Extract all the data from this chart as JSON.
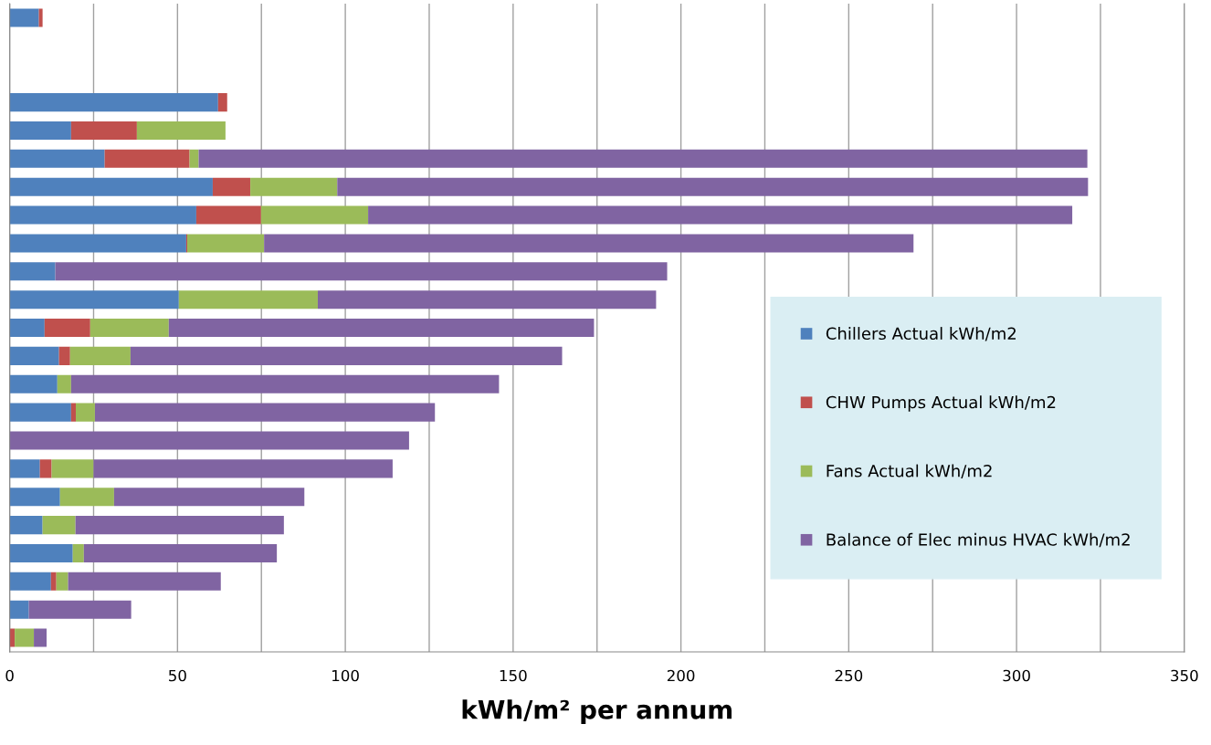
{
  "chart_data": {
    "type": "bar",
    "orientation": "horizontal",
    "stacked": true,
    "xlabel": "kWh/m² per annum",
    "categories": [
      null,
      null,
      null,
      null,
      null,
      null,
      null,
      null,
      null,
      null,
      null,
      null,
      null,
      null,
      null,
      null,
      null,
      null,
      null,
      null,
      null,
      null,
      null
    ],
    "series": [
      {
        "name": "Chillers Actual kWh/m2",
        "color": "#4f81bd",
        "values": [
          8.7,
          null,
          null,
          62.1,
          18.3,
          28.3,
          60.5,
          55.6,
          52.6,
          13.6,
          50.4,
          10.4,
          14.7,
          14.2,
          18.3,
          null,
          9.0,
          15.0,
          9.8,
          18.8,
          12.3,
          5.7,
          null
        ]
      },
      {
        "name": "CHW Pumps Actual kWh/m2",
        "color": "#c0504d",
        "values": [
          1.1,
          null,
          null,
          2.7,
          19.6,
          25.3,
          11.2,
          19.3,
          0.3,
          null,
          null,
          13.6,
          3.3,
          null,
          1.4,
          null,
          3.5,
          null,
          null,
          null,
          1.6,
          null,
          1.5
        ]
      },
      {
        "name": "Fans Actual kWh/m2",
        "color": "#9bbb59",
        "values": [
          null,
          null,
          null,
          null,
          26.4,
          2.7,
          25.9,
          31.9,
          22.9,
          null,
          41.4,
          23.4,
          18.0,
          4.1,
          5.7,
          null,
          12.5,
          16.1,
          9.8,
          3.3,
          3.5,
          null,
          5.7
        ]
      },
      {
        "name": "Balance of Elec minus HVAC kWh/m2",
        "color": "#8064a2",
        "values": [
          null,
          null,
          null,
          null,
          null,
          264.8,
          223.7,
          209.8,
          193.5,
          182.3,
          100.8,
          126.7,
          128.6,
          127.5,
          101.3,
          119.0,
          89.1,
          56.7,
          62.1,
          57.5,
          45.5,
          30.5,
          3.8
        ]
      }
    ],
    "xlim": [
      0,
      350
    ],
    "xticks": [
      0,
      {
        "value": 25,
        "label": null
      },
      50,
      {
        "value": 75,
        "label": null
      },
      100,
      {
        "value": 125,
        "label": null
      },
      150,
      {
        "value": 175,
        "label": null
      },
      200,
      {
        "value": 225,
        "label": null
      },
      250,
      {
        "value": 275,
        "label": null
      },
      300,
      {
        "value": 325,
        "label": null
      },
      350
    ],
    "grid": "x",
    "legend": "right",
    "tick_labels": "x"
  }
}
